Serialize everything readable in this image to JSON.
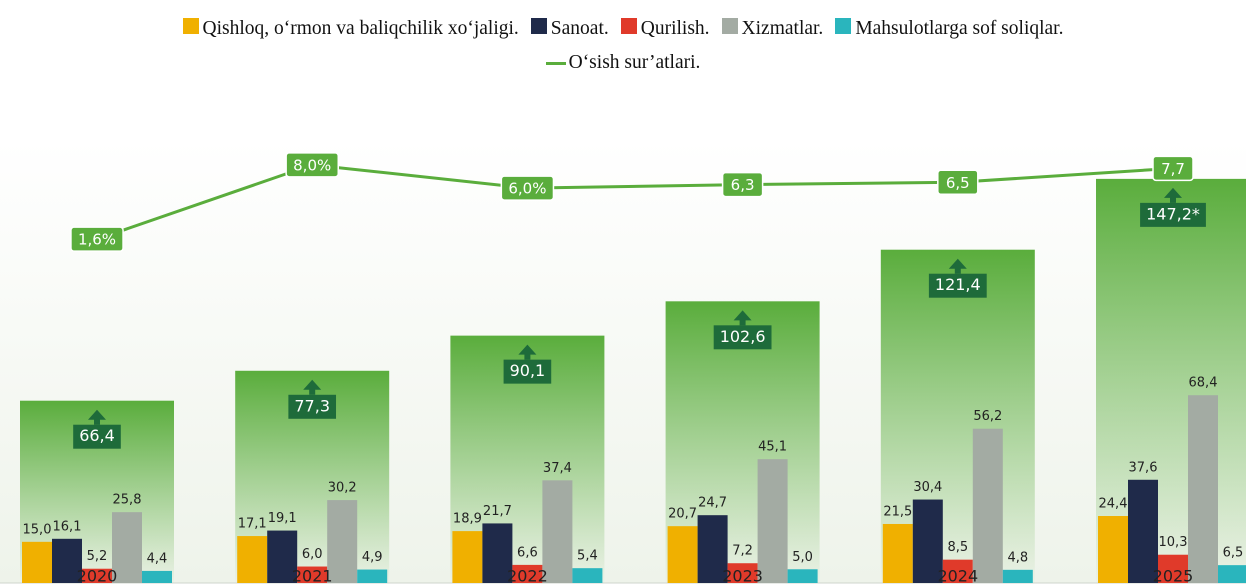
{
  "chart_data": {
    "type": "bar",
    "categories": [
      "2020",
      "2021",
      "2022",
      "2023",
      "2024",
      "2025"
    ],
    "series": [
      {
        "name": "Qishloq, o‘rmon va baliqchilik xo‘jaligi.",
        "color": "#f0b000",
        "values": [
          15.0,
          17.1,
          18.9,
          20.7,
          21.5,
          24.4
        ],
        "value_labels": [
          "15,0",
          "17,1",
          "18,9",
          "20,7",
          "21,5",
          "24,4"
        ]
      },
      {
        "name": "Sanoat.",
        "color": "#1f2a4a",
        "values": [
          16.1,
          19.1,
          21.7,
          24.7,
          30.4,
          37.6
        ],
        "value_labels": [
          "16,1",
          "19,1",
          "21,7",
          "24,7",
          "30,4",
          "37,6"
        ]
      },
      {
        "name": "Qurilish.",
        "color": "#e03a2a",
        "values": [
          5.2,
          6.0,
          6.6,
          7.2,
          8.5,
          10.3
        ],
        "value_labels": [
          "5,2",
          "6,0",
          "6,6",
          "7,2",
          "8,5",
          "10,3"
        ]
      },
      {
        "name": "Xizmatlar.",
        "color": "#a3aba3",
        "values": [
          25.8,
          30.2,
          37.4,
          45.1,
          56.2,
          68.4
        ],
        "value_labels": [
          "25,8",
          "30,2",
          "37,4",
          "45,1",
          "56,2",
          "68,4"
        ]
      },
      {
        "name": "Mahsulotlarga sof soliqlar.",
        "color": "#2ab5bd",
        "values": [
          4.4,
          4.9,
          5.4,
          5.0,
          4.8,
          6.5
        ],
        "value_labels": [
          "4,4",
          "4,9",
          "5,4",
          "5,0",
          "4,8",
          "6,5"
        ]
      },
      {
        "name": "O‘sish sur’atlari.",
        "type": "line",
        "axis": "y2",
        "color": "#5aad3c",
        "values": [
          1.6,
          8.0,
          6.0,
          6.3,
          6.5,
          7.7
        ],
        "value_labels": [
          "1,6%",
          "8,0%",
          "6,0%",
          "6,3",
          "6,5",
          "7,7"
        ]
      }
    ],
    "totals": {
      "color": "#5aad3c",
      "values": [
        66.4,
        77.3,
        90.1,
        102.6,
        121.4,
        147.2
      ],
      "value_labels": [
        "66,4",
        "77,3",
        "90,1",
        "102,6",
        "121,4",
        "147,2*"
      ]
    },
    "ylim": [
      0,
      165
    ],
    "y2lim": [
      -28,
      11
    ]
  }
}
